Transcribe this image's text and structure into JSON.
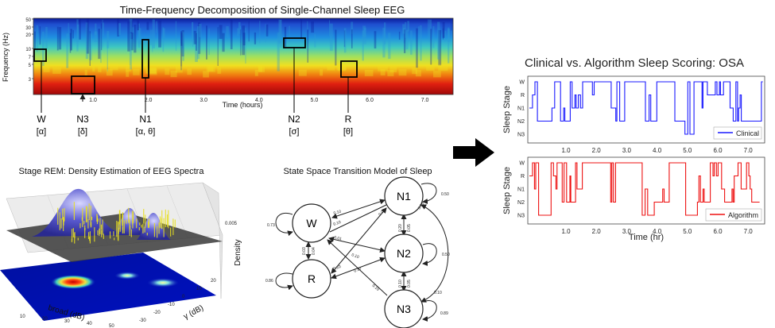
{
  "spectrogram": {
    "title": "Time-Frequency Decomposition of Single-Channel Sleep EEG",
    "ylabel": "Frequency (Hz)",
    "yticks": [
      "50",
      "30",
      "20",
      "10",
      "7",
      "5",
      "3"
    ],
    "xlabel": "Time (hours)",
    "xticks": [
      "1.0",
      "2.0",
      "3.0",
      "4.0",
      "5.0",
      "6.0",
      "7.0"
    ]
  },
  "stage_annotations": [
    {
      "stage": "W",
      "band": "[α]"
    },
    {
      "stage": "N3",
      "band": "[δ]"
    },
    {
      "stage": "N1",
      "band": "[α, θ]"
    },
    {
      "stage": "N2",
      "band": "[σ]"
    },
    {
      "stage": "R",
      "band": "[θ]"
    }
  ],
  "density_plot": {
    "title": "Stage REM: Density Estimation of EEG Spectra",
    "xlabel": "broad (dB)",
    "ylabel": "γ (dB)",
    "zlabel": "Density",
    "xticks": [
      "10",
      "20",
      "30",
      "40",
      "50"
    ],
    "yticks": [
      "-30",
      "-20",
      "-10",
      "0",
      "10",
      "20"
    ],
    "zticks": [
      "0.005"
    ]
  },
  "transition_model": {
    "title": "State Space Transition Model of Sleep",
    "nodes": [
      "W",
      "N1",
      "N2",
      "R",
      "N3"
    ],
    "edge_labels": [
      "0.73",
      "0.10",
      "0.10",
      "0.01",
      "0.03",
      "0.04",
      "0.10",
      "0.86",
      "0.05",
      "0.10",
      "0.05",
      "0.50",
      "0.20",
      "0.10",
      "0.05",
      "0.50",
      "0.10",
      "0.05",
      "0.10",
      "0.89",
      "0.10"
    ]
  },
  "scoring": {
    "title": "Clinical vs. Algorithm Sleep Scoring: OSA",
    "ylabel": "Sleep Stage",
    "stage_ticks": [
      "W",
      "R",
      "N1",
      "N2",
      "N3"
    ],
    "xticks": [
      "1.0",
      "2.0",
      "3.0",
      "4.0",
      "5.0",
      "6.0",
      "7.0"
    ],
    "xlabel": "Time (hr)",
    "legend_clinical": "Clinical",
    "legend_algorithm": "Algorithm",
    "color_clinical": "#1a1aff",
    "color_algorithm": "#ee1111"
  },
  "arrow_icon": "right-arrow-icon"
}
